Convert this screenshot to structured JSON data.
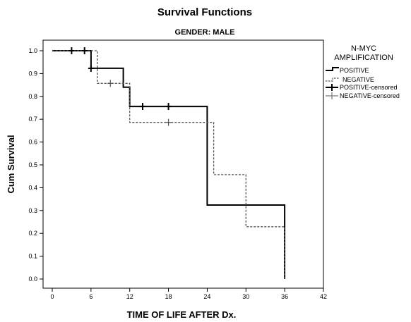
{
  "chart_data": {
    "type": "line",
    "title": "Survival Functions",
    "subtitle": "GENDER: MALE",
    "xlabel": "TIME OF LIFE AFTER Dx.",
    "ylabel": "Cum Survival",
    "xlim": [
      0,
      42
    ],
    "ylim": [
      0,
      1.0
    ],
    "xticks": [
      "0",
      "6",
      "12",
      "18",
      "24",
      "30",
      "36",
      "42"
    ],
    "yticks": [
      "0.0",
      "0.1",
      "0.2",
      "0.3",
      "0.4",
      "0.5",
      "0.6",
      "0.7",
      "0.8",
      "0.9",
      "1.0"
    ],
    "grid": false,
    "legend_title": [
      "N-MYC",
      "AMPLIFICATION"
    ],
    "legend_position": "right",
    "series": [
      {
        "name": "POSITIVE",
        "style": "solid",
        "color": "#000000",
        "x": [
          0,
          6,
          6,
          11,
          11,
          12,
          12,
          24,
          24,
          36,
          36
        ],
        "y": [
          1.0,
          1.0,
          0.923,
          0.923,
          0.84,
          0.84,
          0.756,
          0.756,
          0.324,
          0.324,
          0.0
        ]
      },
      {
        "name": "NEGATIVE",
        "style": "dashed",
        "color": "#555555",
        "x": [
          0,
          7,
          7,
          12,
          12,
          25,
          25,
          30,
          30,
          36,
          36
        ],
        "y": [
          1.0,
          1.0,
          0.857,
          0.857,
          0.686,
          0.686,
          0.457,
          0.457,
          0.229,
          0.229,
          0.0
        ]
      }
    ],
    "censored": [
      {
        "name": "POSITIVE-censored",
        "color": "#000000",
        "x": [
          3,
          5,
          6,
          14,
          18
        ],
        "y": [
          1.0,
          1.0,
          0.923,
          0.756,
          0.756
        ]
      },
      {
        "name": "NEGATIVE-censored",
        "color": "#555555",
        "x": [
          9,
          18
        ],
        "y": [
          0.857,
          0.686
        ]
      }
    ]
  }
}
